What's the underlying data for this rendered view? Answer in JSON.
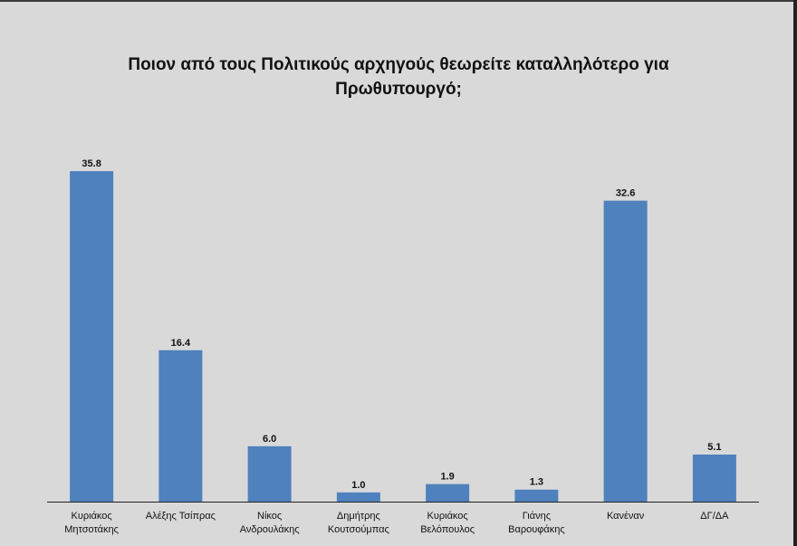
{
  "chart_data": {
    "type": "bar",
    "title_lines": [
      "Ποιον από τους Πολιτικούς αρχηγούς θεωρείτε καταλληλότερο για",
      "Πρωθυπουργό;"
    ],
    "categories": [
      [
        "Κυριάκος",
        "Μητσοτάκης"
      ],
      [
        "Αλέξης Τσίπρας"
      ],
      [
        "Νίκος",
        "Ανδρουλάκης"
      ],
      [
        "Δημήτρης",
        "Κουτσούμπας"
      ],
      [
        "Κυριάκος",
        "Βελόπουλος"
      ],
      [
        "Γιάνης",
        "Βαρουφάκης"
      ],
      [
        "Κανέναν"
      ],
      [
        "ΔΓ/ΔΑ"
      ]
    ],
    "values": [
      35.8,
      16.4,
      6.0,
      1.0,
      1.9,
      1.3,
      32.6,
      5.1
    ],
    "value_labels": [
      "35.8",
      "16.4",
      "6.0",
      "1.0",
      "1.9",
      "1.3",
      "32.6",
      "5.1"
    ],
    "ylim": [
      0,
      35.8
    ],
    "grid": false,
    "legend": "none",
    "bar_color": "#4f81bd",
    "background": "#d9d9d9"
  }
}
